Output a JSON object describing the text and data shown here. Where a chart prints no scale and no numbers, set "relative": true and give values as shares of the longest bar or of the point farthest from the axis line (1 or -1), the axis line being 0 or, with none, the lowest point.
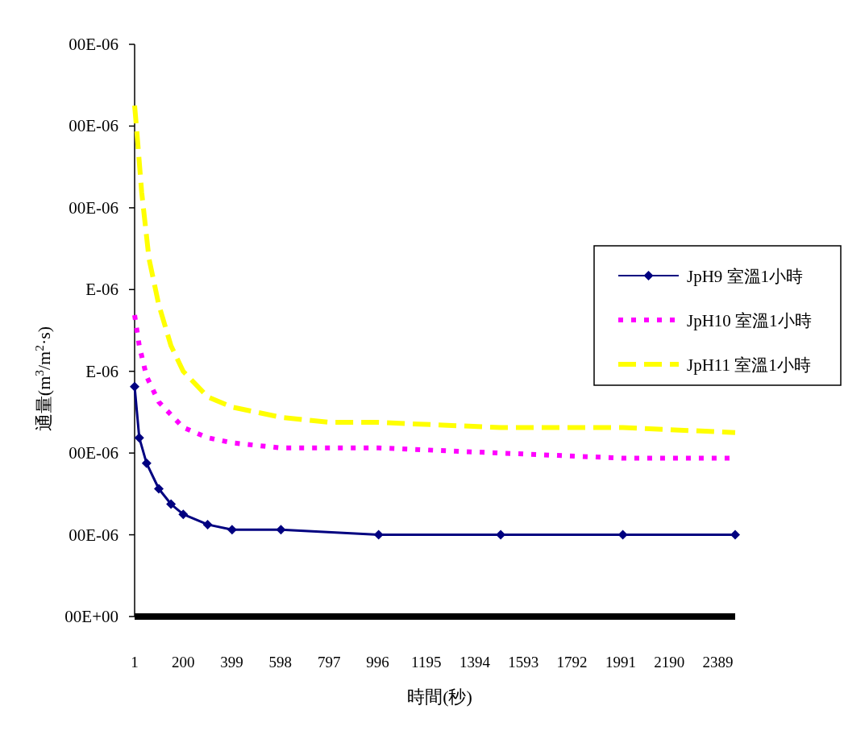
{
  "chart_data": {
    "type": "line",
    "xlabel": "時間(秒)",
    "ylabel": "通量(m$^{3}$/m$^{2}$·s)",
    "xlim": [
      1,
      2460
    ],
    "xticks": [
      1,
      200,
      399,
      598,
      797,
      996,
      1195,
      1394,
      1593,
      1792,
      1991,
      2190,
      2389
    ],
    "relative": true,
    "annotations": [
      "00E-06",
      "00E-06",
      "00E-06",
      "E-06",
      "E-06",
      "00E-06",
      "00E-06",
      "00E+00"
    ],
    "grid": false,
    "legend": "right",
    "series": [
      {
        "name": "JpH9 室溫1小時",
        "color": "#000080",
        "marker": "diamond",
        "line_style": "solid",
        "x": [
          1,
          20,
          50,
          100,
          150,
          200,
          300,
          400,
          600,
          1000,
          1500,
          2000,
          2460
        ],
        "values": [
          0.45,
          0.35,
          0.3,
          0.25,
          0.22,
          0.2,
          0.18,
          0.17,
          0.17,
          0.16,
          0.16,
          0.16,
          0.16
        ]
      },
      {
        "name": "JpH10 室溫1小時",
        "color": "#ff00ff",
        "marker": "none",
        "line_style": "dotted",
        "x": [
          1,
          20,
          50,
          100,
          200,
          300,
          400,
          600,
          1000,
          1500,
          2000,
          2460
        ],
        "values": [
          0.59,
          0.53,
          0.47,
          0.42,
          0.37,
          0.35,
          0.34,
          0.33,
          0.33,
          0.32,
          0.31,
          0.31
        ]
      },
      {
        "name": "JpH11 室溫1小時",
        "color": "#ffff00",
        "marker": "none",
        "line_style": "dashed",
        "x": [
          1,
          10,
          30,
          60,
          100,
          150,
          200,
          300,
          400,
          600,
          800,
          1000,
          1500,
          2000,
          2460
        ],
        "values": [
          1,
          0.95,
          0.83,
          0.7,
          0.61,
          0.53,
          0.48,
          0.43,
          0.41,
          0.39,
          0.38,
          0.38,
          0.37,
          0.37,
          0.36
        ]
      }
    ]
  }
}
